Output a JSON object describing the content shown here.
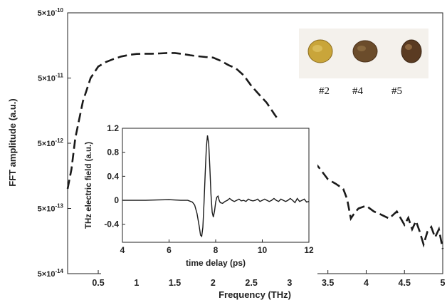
{
  "chart_data": [
    {
      "type": "line",
      "xlabel": "Frequency (THz)",
      "ylabel": "FFT amplitude (a.u.)",
      "xlim": [
        0.1,
        5.0
      ],
      "ylim": [
        5e-14,
        5e-10
      ],
      "yscale": "log",
      "x_ticks": [
        0.5,
        1,
        1.5,
        2,
        2.5,
        3,
        3.5,
        4,
        4.5,
        5
      ],
      "x_tick_labels": [
        "0.5",
        "1",
        "1.5",
        "2",
        "2.5",
        "3",
        "3.5",
        "4",
        "4.5",
        "5"
      ],
      "y_ticks": [
        5e-14,
        5e-13,
        5e-12,
        5e-11,
        5e-10
      ],
      "y_tick_labels": [
        {
          "mantissa": "5×10",
          "exp": "-14"
        },
        {
          "mantissa": "5×10",
          "exp": "-13"
        },
        {
          "mantissa": "5×10",
          "exp": "-12"
        },
        {
          "mantissa": "5×10",
          "exp": "-11"
        },
        {
          "mantissa": "5×10",
          "exp": "-10"
        }
      ],
      "line_style": "dashed",
      "series": [
        {
          "x": [
            0.1,
            0.15,
            0.2,
            0.3,
            0.4,
            0.5,
            0.6,
            0.7,
            0.8,
            0.9,
            1.0,
            1.1,
            1.2,
            1.3,
            1.4,
            1.5,
            1.6,
            1.7,
            1.8,
            1.9,
            2.0,
            2.1,
            2.2,
            2.3,
            2.4,
            2.5,
            2.6,
            2.7,
            2.8,
            2.9,
            3.0,
            3.1,
            3.2,
            3.3,
            3.4,
            3.5,
            3.6,
            3.7,
            3.75,
            3.8,
            3.85,
            3.9,
            4.0,
            4.1,
            4.2,
            4.3,
            4.4,
            4.5,
            4.55,
            4.6,
            4.65,
            4.7,
            4.75,
            4.8,
            4.85,
            4.9,
            4.95,
            5.0
          ],
          "y": [
            1e-12,
            2e-12,
            6e-12,
            2.2e-11,
            5e-11,
            7.5e-11,
            8.8e-11,
            9.8e-11,
            1.07e-10,
            1.13e-10,
            1.17e-10,
            1.18e-10,
            1.18e-10,
            1.19e-10,
            1.21e-10,
            1.21e-10,
            1.17e-10,
            1.12e-10,
            1.08e-10,
            1.05e-10,
            1.03e-10,
            9.2e-11,
            7.9e-11,
            7e-11,
            5.5e-11,
            3.8e-11,
            2.8e-11,
            2.1e-11,
            1.4e-11,
            9.5e-12,
            6e-12,
            4.5e-12,
            3.5e-12,
            2.8e-12,
            2e-12,
            1.4e-12,
            1.2e-12,
            1e-12,
            7e-13,
            3.5e-13,
            4.3e-13,
            5e-13,
            5.5e-13,
            4.5e-13,
            4e-13,
            3.5e-13,
            4.5e-13,
            2.8e-13,
            3.6e-13,
            2.4e-13,
            3.2e-13,
            2.2e-13,
            1.4e-13,
            2.2e-13,
            2.6e-13,
            1.8e-13,
            2.4e-13,
            1.2e-13
          ]
        }
      ]
    },
    {
      "type": "line",
      "xlabel": "time delay (ps)",
      "ylabel": "THz electric field (a.u.)",
      "xlim": [
        4,
        12
      ],
      "ylim": [
        -0.7,
        1.2
      ],
      "x_ticks": [
        4,
        6,
        8,
        10,
        12
      ],
      "x_tick_labels": [
        "4",
        "6",
        "8",
        "10",
        "12"
      ],
      "y_ticks": [
        -0.4,
        0,
        0.4,
        0.8,
        1.2
      ],
      "y_tick_labels": [
        "-0.4",
        "0",
        "0.4",
        "0.8",
        "1.2"
      ],
      "series": [
        {
          "x": [
            4.0,
            4.5,
            5.0,
            5.5,
            6.0,
            6.5,
            6.8,
            7.0,
            7.1,
            7.2,
            7.3,
            7.35,
            7.4,
            7.45,
            7.5,
            7.55,
            7.6,
            7.65,
            7.7,
            7.75,
            7.8,
            7.85,
            7.9,
            7.95,
            8.0,
            8.05,
            8.1,
            8.15,
            8.2,
            8.3,
            8.4,
            8.5,
            8.6,
            8.7,
            8.8,
            8.9,
            9.0,
            9.1,
            9.2,
            9.3,
            9.4,
            9.5,
            9.6,
            9.7,
            9.8,
            9.9,
            10.0,
            10.1,
            10.2,
            10.3,
            10.4,
            10.5,
            10.6,
            10.7,
            10.8,
            10.9,
            11.0,
            11.1,
            11.2,
            11.3,
            11.4,
            11.5,
            11.6,
            11.7,
            11.8,
            11.9,
            12.0
          ],
          "y": [
            0.0,
            0.0,
            0.0,
            0.005,
            0.01,
            0.0,
            0.0,
            -0.03,
            -0.08,
            -0.22,
            -0.45,
            -0.58,
            -0.6,
            -0.45,
            -0.05,
            0.45,
            0.88,
            1.08,
            0.95,
            0.55,
            0.1,
            -0.2,
            -0.28,
            -0.18,
            -0.03,
            0.05,
            0.07,
            0.0,
            -0.04,
            -0.05,
            -0.02,
            0.0,
            0.03,
            0.0,
            -0.02,
            0.0,
            0.02,
            -0.01,
            0.0,
            -0.02,
            0.02,
            0.0,
            -0.01,
            0.0,
            0.02,
            -0.02,
            0.0,
            0.02,
            0.0,
            -0.02,
            0.0,
            0.03,
            0.0,
            -0.02,
            0.02,
            0.0,
            -0.02,
            0.0,
            0.03,
            0.0,
            -0.04,
            0.03,
            -0.02,
            0.0,
            0.02,
            -0.03,
            -0.02
          ]
        }
      ]
    }
  ],
  "photo": {
    "labels": [
      "#2",
      "#4",
      "#5"
    ],
    "seed_colors": [
      "#c9a53a",
      "#6b4c2b",
      "#5a3b22"
    ]
  }
}
